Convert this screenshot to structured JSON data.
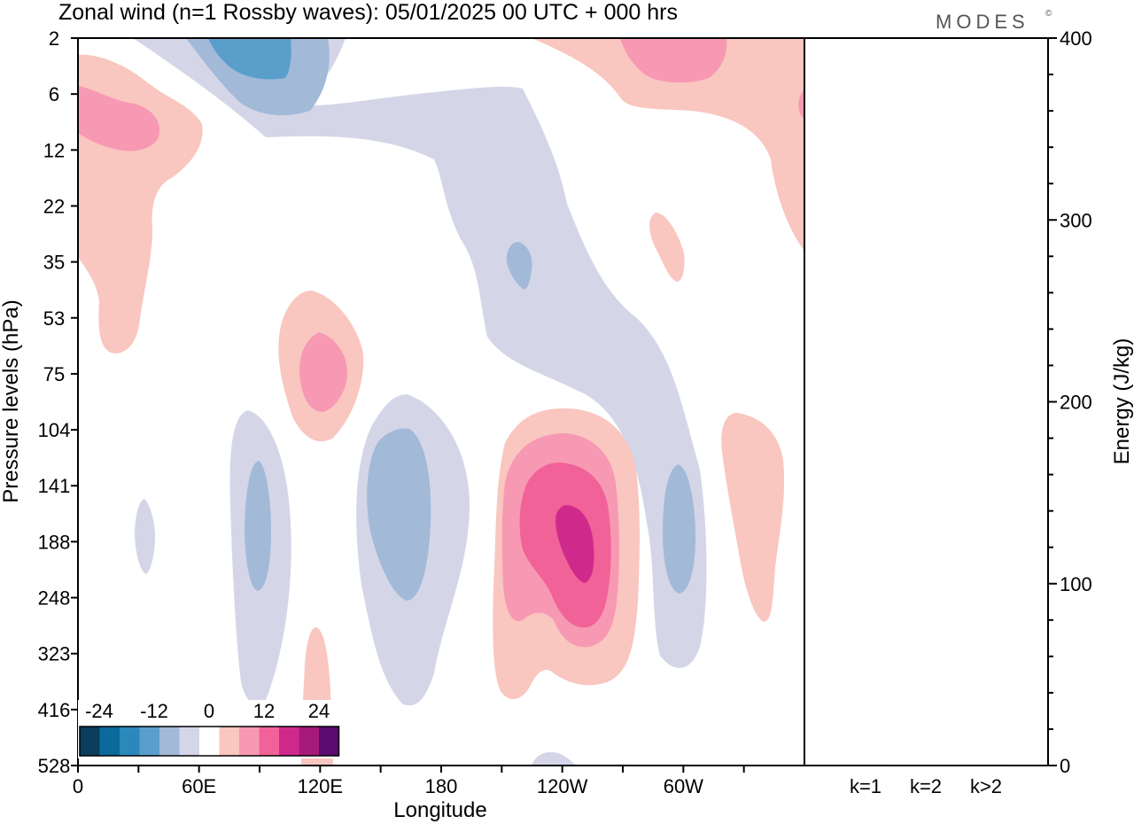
{
  "chart_data": {
    "type": "contour",
    "title": "Zonal wind (n=1 Rossby waves):  05/01/2025  00 UTC  + 000 hrs",
    "brand": "MODES",
    "brand_mark": "©",
    "xlabel": "Longitude",
    "ylabel": "Pressure levels (hPa)",
    "x_ticks": [
      "0",
      "60E",
      "120E",
      "180",
      "120W",
      "60W"
    ],
    "x_tick_lon": [
      0,
      60,
      120,
      180,
      240,
      300
    ],
    "xlim": [
      0,
      360
    ],
    "y_ticks": [
      "2",
      "6",
      "12",
      "22",
      "35",
      "53",
      "75",
      "104",
      "141",
      "188",
      "248",
      "323",
      "416",
      "528"
    ],
    "y_scale": "pressure-levels, inverted (2 at top, 528 at bottom)",
    "contour_levels": [
      -24,
      -20,
      -16,
      -12,
      -8,
      -4,
      0,
      4,
      8,
      12,
      16,
      20,
      24
    ],
    "colorbar_labels": [
      "-24",
      "-12",
      "0",
      "12",
      "24"
    ],
    "colorbar_colors": [
      "#0b3d5c",
      "#0a6a9a",
      "#2a88bd",
      "#5a9fcb",
      "#a3b9d8",
      "#d4d6e8",
      "#ffffff",
      "#f9c6c0",
      "#f799b2",
      "#f06298",
      "#cf2a8b",
      "#a61a7a",
      "#5c0b6e"
    ],
    "regions": [
      {
        "lon": 150,
        "level": "2",
        "value": -10
      },
      {
        "lon": 165,
        "level": "188",
        "value": -10
      },
      {
        "lon": 90,
        "level": "188",
        "value": -10
      },
      {
        "lon": 296,
        "level": "188",
        "value": -10
      },
      {
        "lon": 110,
        "level": "75",
        "value": 10
      },
      {
        "lon": 25,
        "level": "6",
        "value": 12
      },
      {
        "lon": 290,
        "level": "2",
        "value": 10
      },
      {
        "lon": 245,
        "level": "188",
        "value": 18
      }
    ],
    "energy_panel": {
      "ylabel": "Energy (J/kg)",
      "ylim": [
        0,
        400
      ],
      "y_ticks": [
        "0",
        "100",
        "200",
        "300",
        "400"
      ],
      "categories": [
        "k=1",
        "k=2",
        "k>2"
      ],
      "values": [
        0.5,
        0,
        0.5
      ]
    }
  }
}
